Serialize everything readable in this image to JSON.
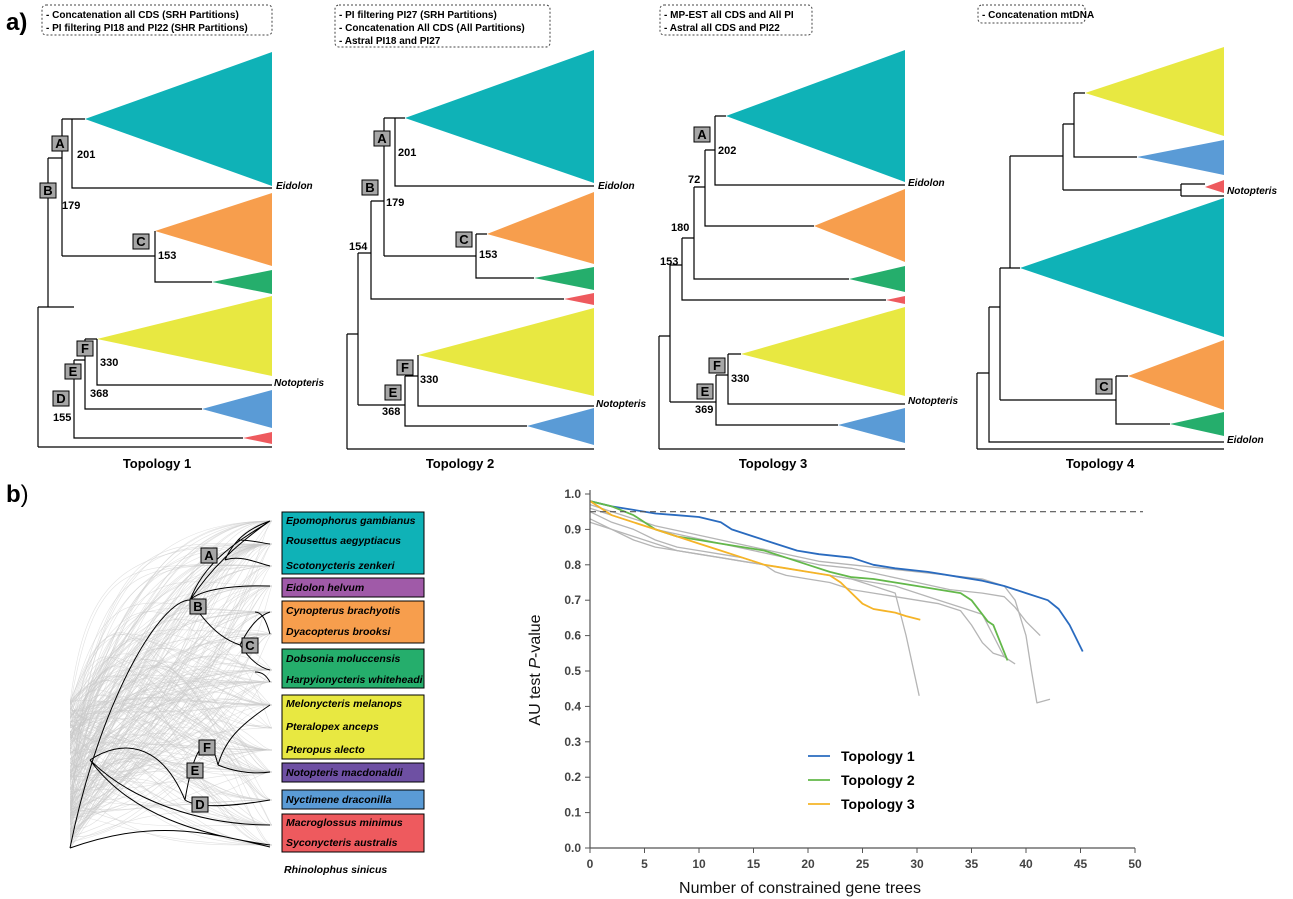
{
  "panel_labels": {
    "a": "a)",
    "b_letter": "b",
    "b_paren": ")"
  },
  "colors": {
    "teal": "#0fb2b7",
    "orange": "#f79e4d",
    "green": "#25ae6c",
    "red": "#ee5a5e",
    "yellow": "#e8e841",
    "blue": "#5a9bd6",
    "purple": "#a05aa8",
    "violet": "#6e50a3",
    "node_box": "#a6a6a6",
    "gene_trees": "#c8c8c8",
    "topo1": "#2a6bbf",
    "topo2": "#63b84a",
    "topo3": "#f5b428",
    "other": "#b5b5b5"
  },
  "topologies": [
    {
      "title": "Topology 1",
      "methods": [
        "- Concatenation all CDS (SRH Partitions)",
        "- PI filtering PI18 and PI22 (SHR Partitions)"
      ],
      "nodes": {
        "A": "A",
        "B": "B",
        "C": "C",
        "D": "D",
        "E": "E",
        "F": "F"
      },
      "supports": [
        "201",
        "179",
        "153",
        "330",
        "368",
        "155"
      ],
      "tips": [
        "Eidolon",
        "Notopteris"
      ]
    },
    {
      "title": "Topology 2",
      "methods": [
        "- PI filtering PI27 (SRH Partitions)",
        "- Concatenation All CDS (All Partitions)",
        "- Astral PI18 and PI27"
      ],
      "nodes": {
        "A": "A",
        "B": "B",
        "C": "C",
        "E": "E",
        "F": "F"
      },
      "supports": [
        "201",
        "179",
        "154",
        "153",
        "330",
        "368"
      ],
      "tips": [
        "Eidolon",
        "Notopteris"
      ]
    },
    {
      "title": "Topology 3",
      "methods": [
        "- MP-EST all CDS and All PI",
        "- Astral all CDS and PI22"
      ],
      "nodes": {
        "A": "A",
        "E": "E",
        "F": "F"
      },
      "supports": [
        "202",
        "72",
        "180",
        "153",
        "330",
        "369"
      ],
      "tips": [
        "Eidolon",
        "Notopteris"
      ]
    },
    {
      "title": "Topology 4",
      "methods": [
        "- Concatenation mtDNA"
      ],
      "nodes": {
        "C": "C"
      },
      "supports": [],
      "tips": [
        "Notopteris",
        "Eidolon"
      ]
    }
  ],
  "cloudogram": {
    "nodes": {
      "A": "A",
      "B": "B",
      "C": "C",
      "D": "D",
      "E": "E",
      "F": "F"
    },
    "species": [
      "Epomophorus gambianus",
      "Rousettus aegyptiacus",
      "Scotonycteris zenkeri",
      "Eidolon helvum",
      "Cynopterus brachyotis",
      "Dyacopterus brooksi",
      "Dobsonia moluccensis",
      "Harpyionycteris whiteheadi",
      "Melonycteris melanops",
      "Pteralopex anceps",
      "Pteropus alecto",
      "Notopteris macdonaldii",
      "Nyctimene draconilla",
      "Macroglossus minimus",
      "Syconycteris australis",
      "Rhinolophus sinicus"
    ]
  },
  "chart_data": {
    "type": "line",
    "xlabel": "Number of constrained gene trees",
    "ylabel_pre": "AU test ",
    "ylabel_italic": "P",
    "ylabel_post": "-value",
    "xlim": [
      0,
      50
    ],
    "ylim": [
      0,
      1.0
    ],
    "xticks": [
      0,
      5,
      10,
      15,
      20,
      25,
      30,
      35,
      40,
      45,
      50
    ],
    "yticks": [
      "0.0",
      "0.1",
      "0.2",
      "0.3",
      "0.4",
      "0.5",
      "0.6",
      "0.7",
      "0.8",
      "0.9",
      "1.0"
    ],
    "threshold": 0.95,
    "legend_position": "center",
    "series": [
      {
        "name": "Topology 1",
        "color": "#2a6bbf",
        "x": [
          0,
          2,
          4,
          6,
          8,
          10,
          12,
          13,
          15,
          17,
          19,
          21,
          24,
          26,
          28,
          31,
          34,
          36,
          38,
          40,
          42,
          43,
          44,
          45.2
        ],
        "y": [
          0.98,
          0.965,
          0.955,
          0.945,
          0.94,
          0.935,
          0.92,
          0.9,
          0.88,
          0.86,
          0.84,
          0.83,
          0.82,
          0.8,
          0.79,
          0.78,
          0.765,
          0.755,
          0.74,
          0.72,
          0.7,
          0.675,
          0.63,
          0.555
        ]
      },
      {
        "name": "Topology 2",
        "color": "#63b84a",
        "x": [
          0,
          2,
          4,
          6,
          8,
          10,
          12,
          14,
          16,
          18,
          20,
          22,
          24,
          26,
          28,
          30,
          32,
          34,
          35,
          36,
          36.5,
          37,
          38.3
        ],
        "y": [
          0.98,
          0.965,
          0.94,
          0.9,
          0.88,
          0.87,
          0.86,
          0.85,
          0.84,
          0.82,
          0.8,
          0.78,
          0.765,
          0.76,
          0.75,
          0.74,
          0.73,
          0.72,
          0.7,
          0.66,
          0.64,
          0.63,
          0.53
        ]
      },
      {
        "name": "Topology 3",
        "color": "#f5b428",
        "x": [
          0,
          2,
          4,
          6,
          8,
          10,
          12,
          14,
          16,
          18,
          20,
          22,
          23,
          24,
          25,
          26,
          27,
          28,
          29,
          30.3
        ],
        "y": [
          0.98,
          0.94,
          0.92,
          0.9,
          0.88,
          0.86,
          0.84,
          0.82,
          0.8,
          0.79,
          0.78,
          0.77,
          0.75,
          0.72,
          0.69,
          0.675,
          0.67,
          0.665,
          0.655,
          0.645
        ]
      },
      {
        "color": "#b5b5b5",
        "x": [
          0,
          2,
          4,
          6,
          8,
          10,
          12,
          14,
          16,
          18,
          20,
          22,
          24,
          26,
          28,
          29,
          30.2
        ],
        "y": [
          0.93,
          0.9,
          0.87,
          0.85,
          0.84,
          0.83,
          0.82,
          0.81,
          0.8,
          0.79,
          0.78,
          0.77,
          0.76,
          0.74,
          0.72,
          0.6,
          0.43
        ]
      },
      {
        "color": "#b5b5b5",
        "x": [
          0,
          2,
          4,
          6,
          8,
          10,
          12,
          14,
          16,
          17,
          18,
          20,
          22,
          24,
          26,
          28,
          30,
          32,
          34,
          35,
          36,
          37,
          38
        ],
        "y": [
          0.95,
          0.92,
          0.9,
          0.87,
          0.85,
          0.84,
          0.83,
          0.82,
          0.8,
          0.78,
          0.77,
          0.76,
          0.75,
          0.73,
          0.72,
          0.71,
          0.7,
          0.69,
          0.67,
          0.63,
          0.58,
          0.55,
          0.54
        ]
      },
      {
        "color": "#b5b5b5",
        "x": [
          0,
          2,
          4,
          6,
          8,
          10,
          12,
          14,
          16,
          18,
          20,
          22,
          24,
          26,
          28,
          30,
          32,
          34,
          36,
          37,
          38,
          39
        ],
        "y": [
          0.92,
          0.9,
          0.88,
          0.86,
          0.84,
          0.83,
          0.82,
          0.81,
          0.8,
          0.79,
          0.78,
          0.77,
          0.76,
          0.75,
          0.74,
          0.72,
          0.7,
          0.68,
          0.66,
          0.6,
          0.54,
          0.52
        ]
      },
      {
        "color": "#b5b5b5",
        "x": [
          0,
          3,
          6,
          9,
          12,
          15,
          18,
          21,
          24,
          27,
          30,
          33,
          36,
          38,
          39,
          40,
          41.3
        ],
        "y": [
          0.96,
          0.93,
          0.9,
          0.88,
          0.86,
          0.84,
          0.82,
          0.8,
          0.79,
          0.77,
          0.75,
          0.73,
          0.72,
          0.71,
          0.68,
          0.64,
          0.6
        ]
      },
      {
        "color": "#b5b5b5",
        "x": [
          0,
          3,
          6,
          9,
          12,
          15,
          18,
          21,
          24,
          27,
          30,
          33,
          36,
          38,
          39,
          40,
          40.5,
          41,
          42.2
        ],
        "y": [
          0.97,
          0.94,
          0.91,
          0.89,
          0.87,
          0.85,
          0.83,
          0.81,
          0.8,
          0.79,
          0.78,
          0.77,
          0.76,
          0.74,
          0.7,
          0.6,
          0.5,
          0.41,
          0.42
        ]
      }
    ]
  }
}
